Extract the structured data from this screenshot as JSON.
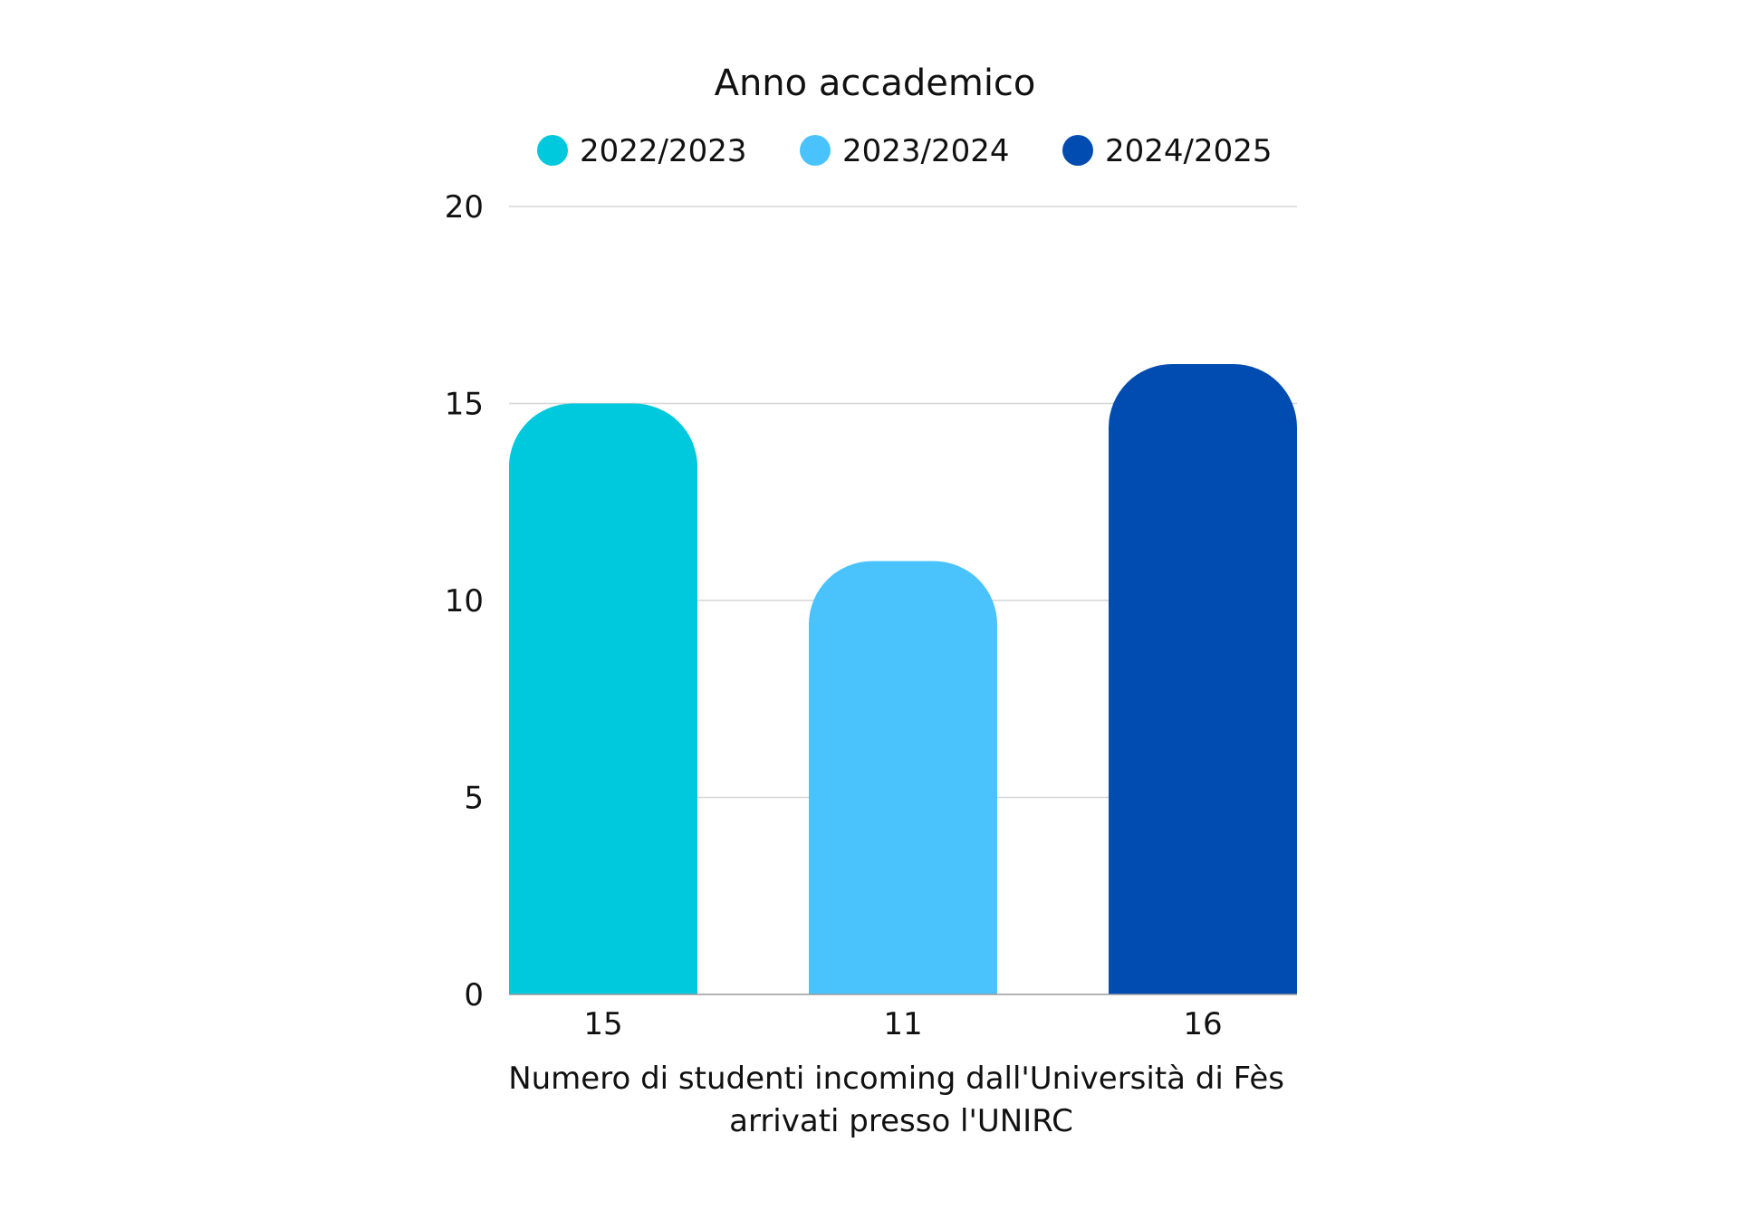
{
  "chart_data": {
    "type": "bar",
    "legend_title": "Anno accademico",
    "legend_position": "top",
    "categories": [
      "15",
      "11",
      "16"
    ],
    "series": [
      {
        "name": "2022/2023",
        "value": 15,
        "color": "#00C9DD"
      },
      {
        "name": "2023/2024",
        "value": 11,
        "color": "#4AC3FC"
      },
      {
        "name": "2024/2025",
        "value": 16,
        "color": "#004CB0"
      }
    ],
    "xlabel_lines": [
      "Numero di studenti incoming dall'Università di Fès",
      "arrivati presso l'UNIRC"
    ],
    "ylabel": "",
    "ylim": [
      0,
      20
    ],
    "yticks": [
      0,
      5,
      10,
      15,
      20
    ],
    "grid": true
  }
}
